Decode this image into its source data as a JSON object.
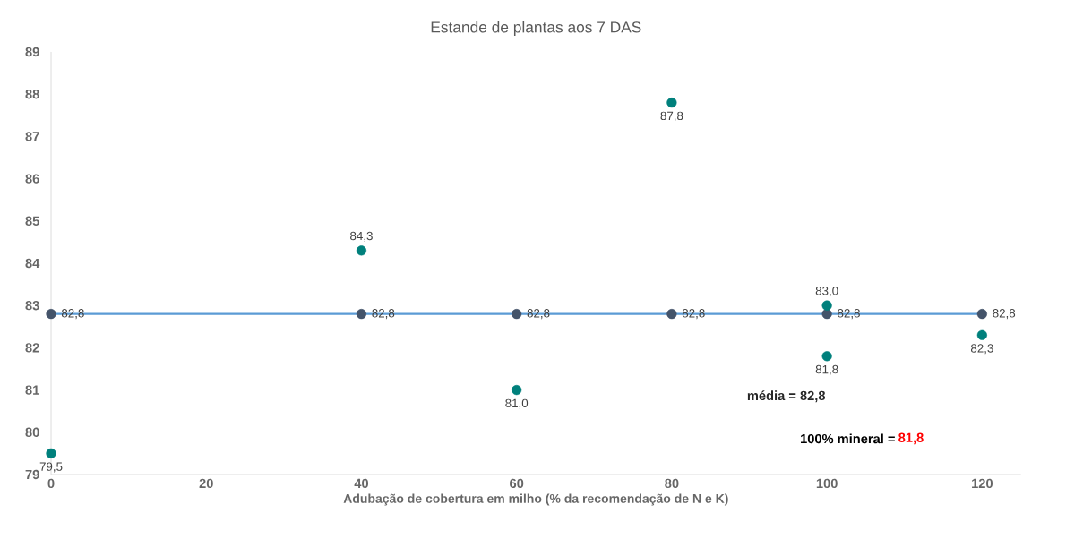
{
  "chart_data": {
    "type": "scatter",
    "title": "Estande de plantas aos 7 DAS",
    "xlabel": "Adubação de cobertura em milho (% da recomendação de N e K)",
    "xlim": [
      0,
      125
    ],
    "ylim": [
      79,
      89
    ],
    "xticks": [
      0,
      20,
      40,
      60,
      80,
      100,
      120
    ],
    "yticks": [
      79,
      80,
      81,
      82,
      83,
      84,
      85,
      86,
      87,
      88,
      89
    ],
    "grid": false,
    "marker": "circle",
    "series": [
      {
        "type": "line",
        "marker": "none",
        "color": "#5b9bd5",
        "x": [
          0,
          120
        ],
        "values": [
          82.8,
          82.8
        ]
      },
      {
        "color": "#44546a",
        "x": [
          0,
          40,
          60,
          80,
          100,
          120
        ],
        "values": [
          82.8,
          82.8,
          82.8,
          82.8,
          82.8,
          82.8
        ],
        "value_labels": [
          "82,8",
          "82,8",
          "82,8",
          "82,8",
          "82,8",
          "82,8"
        ]
      },
      {
        "color": "#00807c",
        "x": [
          0,
          40,
          60,
          80,
          100,
          100,
          120
        ],
        "values": [
          79.5,
          84.3,
          81.0,
          87.8,
          83.0,
          81.8,
          82.3
        ],
        "value_labels": [
          "79,5",
          "84,3",
          "81,0",
          "87,8",
          "83,0",
          "81,8",
          "82,3"
        ]
      }
    ],
    "annotations": [
      "média = 82,8",
      "100% mineral =",
      "81,8"
    ]
  }
}
